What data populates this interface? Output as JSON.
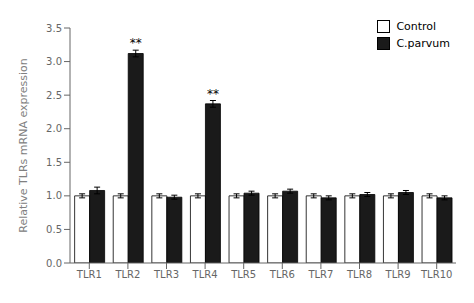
{
  "chart_data": {
    "type": "bar",
    "categories": [
      "TLR1",
      "TLR2",
      "TLR3",
      "TLR4",
      "TLR5",
      "TLR6",
      "TLR7",
      "TLR8",
      "TLR9",
      "TLR10"
    ],
    "series": [
      {
        "name": "Control",
        "color": "#ffffff",
        "values": [
          1.0,
          1.0,
          1.0,
          1.0,
          1.0,
          1.0,
          1.0,
          1.0,
          1.0,
          1.0
        ],
        "errors": [
          0.03,
          0.03,
          0.03,
          0.03,
          0.03,
          0.03,
          0.03,
          0.03,
          0.03,
          0.03
        ]
      },
      {
        "name": "C.parvum",
        "color": "#1a1a1a",
        "values": [
          1.08,
          3.12,
          0.98,
          2.37,
          1.04,
          1.07,
          0.97,
          1.02,
          1.05,
          0.97
        ],
        "errors": [
          0.05,
          0.05,
          0.03,
          0.05,
          0.03,
          0.03,
          0.03,
          0.03,
          0.03,
          0.03
        ]
      }
    ],
    "ylabel": "Relative TLRs mRNA expression",
    "ylim": [
      0,
      3.5
    ],
    "yticks": [
      {
        "value": 0,
        "label": "0.0"
      },
      0.5,
      {
        "value": 1,
        "label": "1.0"
      },
      1.5,
      {
        "value": 2,
        "label": "2.0"
      },
      2.5,
      {
        "value": 3,
        "label": "3.0"
      },
      3.5
    ],
    "annotations": [
      {
        "category": "TLR2",
        "series": "C.parvum",
        "text": "**"
      },
      {
        "category": "TLR4",
        "series": "C.parvum",
        "text": "**"
      }
    ],
    "legend": "upper right",
    "grid": false
  }
}
